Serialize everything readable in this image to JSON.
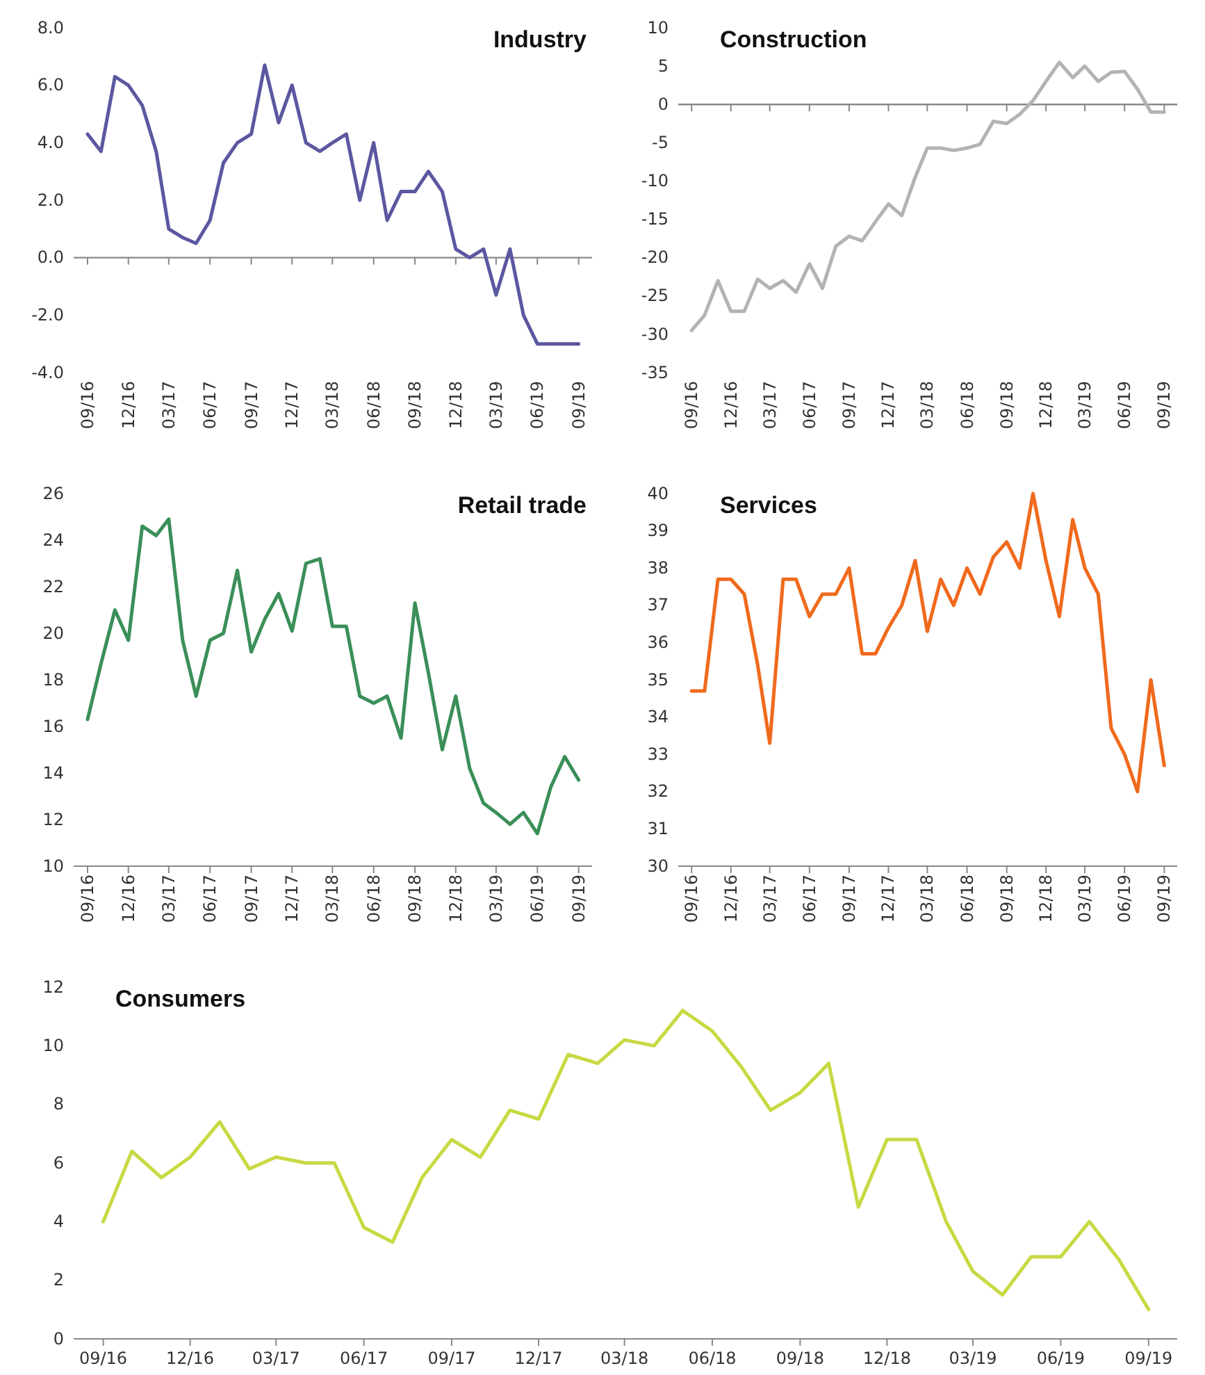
{
  "chart_data": [
    {
      "type": "line",
      "title": "Industry",
      "x": [
        "2016-09",
        "2016-10",
        "2016-11",
        "2016-12",
        "2017-01",
        "2017-02",
        "2017-03",
        "2017-04",
        "2017-05",
        "2017-06",
        "2017-07",
        "2017-08",
        "2017-09",
        "2017-10",
        "2017-11",
        "2017-12",
        "2018-01",
        "2018-02",
        "2018-03",
        "2018-04",
        "2018-05",
        "2018-06",
        "2018-07",
        "2018-08",
        "2018-09",
        "2018-10",
        "2018-11",
        "2018-12",
        "2019-01",
        "2019-02",
        "2019-03",
        "2019-04",
        "2019-05",
        "2019-06",
        "2019-07",
        "2019-08",
        "2019-09"
      ],
      "series": [
        {
          "color": "#5b57a0",
          "values": [
            4.3,
            3.7,
            6.3,
            6.0,
            5.3,
            3.7,
            1.0,
            0.7,
            0.5,
            1.3,
            3.3,
            4.0,
            4.3,
            6.7,
            4.7,
            6.0,
            4.0,
            3.7,
            4.0,
            4.3,
            2.0,
            4.0,
            1.3,
            2.3,
            2.3,
            3.0,
            2.3,
            0.3,
            0.0,
            0.3,
            -1.3,
            0.3,
            -2.0,
            -3.0,
            -3.0,
            -3.0,
            -3.0
          ]
        }
      ],
      "xlim": [
        "2016-08",
        "2019-10"
      ],
      "xticks": [
        {
          "value": "2016-09",
          "label": "09/16"
        },
        {
          "value": "2016-12",
          "label": "12/16"
        },
        {
          "value": "2017-03",
          "label": "03/17"
        },
        {
          "value": "2017-06",
          "label": "06/17"
        },
        {
          "value": "2017-09",
          "label": "09/17"
        },
        {
          "value": "2017-12",
          "label": "12/17"
        },
        {
          "value": "2018-03",
          "label": "03/18"
        },
        {
          "value": "2018-06",
          "label": "06/18"
        },
        {
          "value": "2018-09",
          "label": "09/18"
        },
        {
          "value": "2018-12",
          "label": "12/18"
        },
        {
          "value": "2019-03",
          "label": "03/19"
        },
        {
          "value": "2019-06",
          "label": "06/19"
        },
        {
          "value": "2019-09",
          "label": "09/19"
        }
      ],
      "ylim": [
        -4,
        8
      ],
      "yticks": [
        {
          "value": -4,
          "label": "-4.0"
        },
        {
          "value": -2,
          "label": "-2.0"
        },
        {
          "value": 0,
          "label": "0.0"
        },
        {
          "value": 2,
          "label": "2.0"
        },
        {
          "value": 4,
          "label": "4.0"
        },
        {
          "value": 6,
          "label": "6.0"
        },
        {
          "value": 8,
          "label": "8.0"
        }
      ],
      "ref_lines": [
        {
          "axis": "y",
          "value": 0,
          "color": "#888888"
        }
      ]
    },
    {
      "type": "line",
      "title": "Construction",
      "x": [
        "2016-09",
        "2016-10",
        "2016-11",
        "2016-12",
        "2017-01",
        "2017-02",
        "2017-03",
        "2017-04",
        "2017-05",
        "2017-06",
        "2017-07",
        "2017-08",
        "2017-09",
        "2017-10",
        "2017-11",
        "2017-12",
        "2018-01",
        "2018-02",
        "2018-03",
        "2018-04",
        "2018-05",
        "2018-06",
        "2018-07",
        "2018-08",
        "2018-09",
        "2018-10",
        "2018-11",
        "2018-12",
        "2019-01",
        "2019-02",
        "2019-03",
        "2019-04",
        "2019-05",
        "2019-06",
        "2019-07",
        "2019-08",
        "2019-09"
      ],
      "series": [
        {
          "color": "#b3b3b3",
          "values": [
            -29.5,
            -27.5,
            -23,
            -27,
            -27,
            -22.8,
            -24,
            -23,
            -24.5,
            -20.8,
            -24,
            -18.5,
            -17.2,
            -17.8,
            -15.3,
            -13,
            -14.5,
            -9.5,
            -5.7,
            -5.7,
            -6,
            -5.7,
            -5.2,
            -2.2,
            -2.5,
            -1.3,
            0.5,
            3,
            5.5,
            3.5,
            5,
            3,
            4.2,
            4.3,
            2,
            -1,
            -1
          ]
        }
      ],
      "xlim": [
        "2016-08",
        "2019-10"
      ],
      "xticks": [
        {
          "value": "2016-09",
          "label": "09/16"
        },
        {
          "value": "2016-12",
          "label": "12/16"
        },
        {
          "value": "2017-03",
          "label": "03/17"
        },
        {
          "value": "2017-06",
          "label": "06/17"
        },
        {
          "value": "2017-09",
          "label": "09/17"
        },
        {
          "value": "2017-12",
          "label": "12/17"
        },
        {
          "value": "2018-03",
          "label": "03/18"
        },
        {
          "value": "2018-06",
          "label": "06/18"
        },
        {
          "value": "2018-09",
          "label": "09/18"
        },
        {
          "value": "2018-12",
          "label": "12/18"
        },
        {
          "value": "2019-03",
          "label": "03/19"
        },
        {
          "value": "2019-06",
          "label": "06/19"
        },
        {
          "value": "2019-09",
          "label": "09/19"
        }
      ],
      "ylim": [
        -35,
        10
      ],
      "yticks": [
        -35,
        -30,
        -25,
        -20,
        -15,
        -10,
        -5,
        0,
        5,
        10
      ],
      "ref_lines": [
        {
          "axis": "y",
          "value": 0,
          "color": "#888888"
        }
      ]
    },
    {
      "type": "line",
      "title": "Retail trade",
      "x": [
        "2016-09",
        "2016-10",
        "2016-11",
        "2016-12",
        "2017-01",
        "2017-02",
        "2017-03",
        "2017-04",
        "2017-05",
        "2017-06",
        "2017-07",
        "2017-08",
        "2017-09",
        "2017-10",
        "2017-11",
        "2017-12",
        "2018-01",
        "2018-02",
        "2018-03",
        "2018-04",
        "2018-05",
        "2018-06",
        "2018-07",
        "2018-08",
        "2018-09",
        "2018-10",
        "2018-11",
        "2018-12",
        "2019-01",
        "2019-02",
        "2019-03",
        "2019-04",
        "2019-05",
        "2019-06",
        "2019-07",
        "2019-08",
        "2019-09"
      ],
      "series": [
        {
          "color": "#3a8f58",
          "values": [
            16.3,
            18.7,
            21,
            19.7,
            24.6,
            24.2,
            24.9,
            19.7,
            17.3,
            19.7,
            20,
            22.7,
            19.2,
            20.6,
            21.7,
            20.1,
            23,
            23.2,
            20.3,
            20.3,
            17.3,
            17,
            17.3,
            15.5,
            21.3,
            18.3,
            15,
            17.3,
            14.2,
            12.7,
            12.3,
            11.8,
            12.3,
            11.4,
            13.4,
            14.7,
            13.7
          ]
        }
      ],
      "xlim": [
        "2016-08",
        "2019-10"
      ],
      "xticks": [
        {
          "value": "2016-09",
          "label": "09/16"
        },
        {
          "value": "2016-12",
          "label": "12/16"
        },
        {
          "value": "2017-03",
          "label": "03/17"
        },
        {
          "value": "2017-06",
          "label": "06/17"
        },
        {
          "value": "2017-09",
          "label": "09/17"
        },
        {
          "value": "2017-12",
          "label": "12/17"
        },
        {
          "value": "2018-03",
          "label": "03/18"
        },
        {
          "value": "2018-06",
          "label": "06/18"
        },
        {
          "value": "2018-09",
          "label": "09/18"
        },
        {
          "value": "2018-12",
          "label": "12/18"
        },
        {
          "value": "2019-03",
          "label": "03/19"
        },
        {
          "value": "2019-06",
          "label": "06/19"
        },
        {
          "value": "2019-09",
          "label": "09/19"
        }
      ],
      "ylim": [
        10,
        26
      ],
      "yticks": [
        10,
        12,
        14,
        16,
        18,
        20,
        22,
        24,
        26
      ]
    },
    {
      "type": "line",
      "title": "Services",
      "x": [
        "2016-09",
        "2016-10",
        "2016-11",
        "2016-12",
        "2017-01",
        "2017-02",
        "2017-03",
        "2017-04",
        "2017-05",
        "2017-06",
        "2017-07",
        "2017-08",
        "2017-09",
        "2017-10",
        "2017-11",
        "2017-12",
        "2018-01",
        "2018-02",
        "2018-03",
        "2018-04",
        "2018-05",
        "2018-06",
        "2018-07",
        "2018-08",
        "2018-09",
        "2018-10",
        "2018-11",
        "2018-12",
        "2019-01",
        "2019-02",
        "2019-03",
        "2019-04",
        "2019-05",
        "2019-06",
        "2019-07",
        "2019-08",
        "2019-09"
      ],
      "series": [
        {
          "color": "#f06a1c",
          "values": [
            34.7,
            34.7,
            37.7,
            37.7,
            37.3,
            35.4,
            33.3,
            37.7,
            37.7,
            36.7,
            37.3,
            37.3,
            38,
            35.7,
            35.7,
            36.4,
            37,
            38.2,
            36.3,
            37.7,
            37,
            38,
            37.3,
            38.3,
            38.7,
            38,
            40,
            38.2,
            36.7,
            39.3,
            38,
            37.3,
            33.7,
            33,
            32,
            35,
            32.7
          ]
        }
      ],
      "xlim": [
        "2016-08",
        "2019-10"
      ],
      "xticks": [
        {
          "value": "2016-09",
          "label": "09/16"
        },
        {
          "value": "2016-12",
          "label": "12/16"
        },
        {
          "value": "2017-03",
          "label": "03/17"
        },
        {
          "value": "2017-06",
          "label": "06/17"
        },
        {
          "value": "2017-09",
          "label": "09/17"
        },
        {
          "value": "2017-12",
          "label": "12/17"
        },
        {
          "value": "2018-03",
          "label": "03/18"
        },
        {
          "value": "2018-06",
          "label": "06/18"
        },
        {
          "value": "2018-09",
          "label": "09/18"
        },
        {
          "value": "2018-12",
          "label": "12/18"
        },
        {
          "value": "2019-03",
          "label": "03/19"
        },
        {
          "value": "2019-06",
          "label": "06/19"
        },
        {
          "value": "2019-09",
          "label": "09/19"
        }
      ],
      "ylim": [
        30,
        40
      ],
      "yticks": [
        30,
        31,
        32,
        33,
        34,
        35,
        36,
        37,
        38,
        39,
        40
      ]
    },
    {
      "type": "line",
      "title": "Consumers",
      "x": [
        "2016-09",
        "2016-10",
        "2016-11",
        "2016-12",
        "2017-01",
        "2017-02",
        "2017-03",
        "2017-04",
        "2017-05",
        "2017-06",
        "2017-07",
        "2017-08",
        "2017-09",
        "2017-10",
        "2017-11",
        "2017-12",
        "2018-01",
        "2018-02",
        "2018-03",
        "2018-04",
        "2018-05",
        "2018-06",
        "2018-07",
        "2018-08",
        "2018-09",
        "2018-10",
        "2018-11",
        "2018-12",
        "2019-01",
        "2019-02",
        "2019-03",
        "2019-04",
        "2019-05",
        "2019-06",
        "2019-07",
        "2019-08",
        "2019-09"
      ],
      "series": [
        {
          "color": "#c8d943",
          "values": [
            4,
            6.4,
            5.5,
            6.2,
            7.4,
            5.8,
            6.2,
            6.0,
            6.0,
            3.8,
            3.3,
            5.5,
            6.8,
            6.2,
            7.8,
            7.5,
            9.7,
            9.4,
            10.2,
            10.0,
            11.2,
            10.5,
            9.3,
            7.8,
            8.4,
            9.4,
            4.5,
            6.8,
            6.8,
            4.0,
            2.3,
            1.5,
            2.8,
            2.8,
            4.0,
            2.7,
            1.0
          ]
        }
      ],
      "xlim": [
        "2016-08",
        "2019-10"
      ],
      "xticks": [
        {
          "value": "2016-09",
          "label": "09/16"
        },
        {
          "value": "2016-12",
          "label": "12/16"
        },
        {
          "value": "2017-03",
          "label": "03/17"
        },
        {
          "value": "2017-06",
          "label": "06/17"
        },
        {
          "value": "2017-09",
          "label": "09/17"
        },
        {
          "value": "2017-12",
          "label": "12/17"
        },
        {
          "value": "2018-03",
          "label": "03/18"
        },
        {
          "value": "2018-06",
          "label": "06/18"
        },
        {
          "value": "2018-09",
          "label": "09/18"
        },
        {
          "value": "2018-12",
          "label": "12/18"
        },
        {
          "value": "2019-03",
          "label": "03/19"
        },
        {
          "value": "2019-06",
          "label": "06/19"
        },
        {
          "value": "2019-09",
          "label": "09/19"
        }
      ],
      "ylim": [
        0,
        12
      ],
      "yticks": [
        0,
        2,
        4,
        6,
        8,
        10,
        12
      ]
    }
  ]
}
